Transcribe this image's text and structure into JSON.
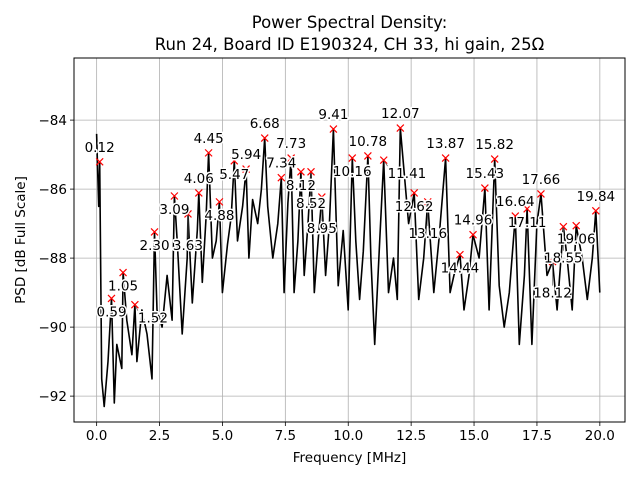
{
  "chart_data": {
    "type": "line",
    "title": [
      "Power Spectral Density:",
      "Run 24, Board ID E190324, CH 33, hi gain, 25Ω"
    ],
    "xlabel": "Frequency [MHz]",
    "ylabel": "PSD [dB Full Scale]",
    "xlim": [
      -0.9,
      21.0
    ],
    "ylim": [
      -92.75,
      -82.2
    ],
    "xticks": [
      0.0,
      2.5,
      5.0,
      7.5,
      10.0,
      12.5,
      15.0,
      17.5,
      20.0
    ],
    "xtick_labels": [
      "0.0",
      "2.5",
      "5.0",
      "7.5",
      "10.0",
      "12.5",
      "15.0",
      "17.5",
      "20.0"
    ],
    "yticks": [
      -84,
      -86,
      -88,
      -90,
      -92
    ],
    "ytick_labels": [
      "−84",
      "−86",
      "−88",
      "−90",
      "−92"
    ],
    "grid": true,
    "line_color": "#000000",
    "marker_color": "#ff0000",
    "trace": [
      [
        0.0,
        -84.4
      ],
      [
        0.08,
        -86.5
      ],
      [
        0.2,
        -91.5
      ],
      [
        0.3,
        -92.3
      ],
      [
        0.45,
        -91.0
      ],
      [
        0.7,
        -92.2
      ],
      [
        0.8,
        -90.5
      ],
      [
        1.0,
        -91.2
      ],
      [
        1.2,
        -89.8
      ],
      [
        1.4,
        -90.8
      ],
      [
        1.6,
        -91.0
      ],
      [
        1.8,
        -89.5
      ],
      [
        2.0,
        -90.2
      ],
      [
        2.2,
        -91.5
      ],
      [
        2.4,
        -89.5
      ],
      [
        2.6,
        -90.0
      ],
      [
        2.8,
        -88.5
      ],
      [
        3.0,
        -89.8
      ],
      [
        3.2,
        -87.5
      ],
      [
        3.4,
        -90.2
      ],
      [
        3.6,
        -88.0
      ],
      [
        3.8,
        -89.3
      ],
      [
        4.0,
        -87.2
      ],
      [
        4.2,
        -88.7
      ],
      [
        4.35,
        -86.8
      ],
      [
        4.6,
        -88.0
      ],
      [
        4.75,
        -87.5
      ],
      [
        5.0,
        -89.0
      ],
      [
        5.2,
        -87.6
      ],
      [
        5.35,
        -86.8
      ],
      [
        5.6,
        -87.5
      ],
      [
        5.8,
        -86.5
      ],
      [
        6.05,
        -88.0
      ],
      [
        6.2,
        -86.3
      ],
      [
        6.4,
        -87.0
      ],
      [
        6.55,
        -86.0
      ],
      [
        6.8,
        -86.5
      ],
      [
        7.0,
        -88.0
      ],
      [
        7.2,
        -87.0
      ],
      [
        7.45,
        -89.0
      ],
      [
        7.6,
        -86.4
      ],
      [
        7.85,
        -89.0
      ],
      [
        8.0,
        -87.5
      ],
      [
        8.25,
        -88.5
      ],
      [
        8.4,
        -87.0
      ],
      [
        8.65,
        -89.0
      ],
      [
        8.8,
        -87.5
      ],
      [
        9.1,
        -88.5
      ],
      [
        9.25,
        -87.0
      ],
      [
        9.6,
        -88.8
      ],
      [
        9.8,
        -87.2
      ],
      [
        10.0,
        -89.5
      ],
      [
        10.3,
        -87.5
      ],
      [
        10.45,
        -89.2
      ],
      [
        10.6,
        -87.8
      ],
      [
        10.9,
        -88.0
      ],
      [
        11.05,
        -90.5
      ],
      [
        11.25,
        -87.5
      ],
      [
        11.6,
        -89.0
      ],
      [
        11.8,
        -88.0
      ],
      [
        11.95,
        -89.2
      ],
      [
        12.4,
        -87.0
      ],
      [
        12.8,
        -89.2
      ],
      [
        13.0,
        -88.0
      ],
      [
        13.4,
        -89.0
      ],
      [
        13.6,
        -87.5
      ],
      [
        14.05,
        -89.0
      ],
      [
        14.2,
        -88.5
      ],
      [
        14.6,
        -89.5
      ],
      [
        14.8,
        -88.5
      ],
      [
        15.2,
        -88.0
      ],
      [
        15.6,
        -89.5
      ],
      [
        16.0,
        -88.8
      ],
      [
        16.2,
        -90.0
      ],
      [
        16.4,
        -89.0
      ],
      [
        16.8,
        -90.5
      ],
      [
        17.0,
        -88.5
      ],
      [
        17.3,
        -90.5
      ],
      [
        17.5,
        -87.0
      ],
      [
        17.9,
        -88.5
      ],
      [
        18.3,
        -89.5
      ],
      [
        18.7,
        -88.0
      ],
      [
        18.9,
        -89.5
      ],
      [
        19.3,
        -88.0
      ],
      [
        19.5,
        -89.2
      ],
      [
        19.7,
        -88.0
      ],
      [
        20.0,
        -89.0
      ]
    ],
    "peaks": [
      {
        "x": 0.12,
        "y": -85.21,
        "label": "0.12"
      },
      {
        "x": 0.59,
        "y": -89.17,
        "label": "0.59"
      },
      {
        "x": 1.05,
        "y": -88.42,
        "label": "1.05"
      },
      {
        "x": 1.52,
        "y": -89.35,
        "label": "1.52"
      },
      {
        "x": 2.3,
        "y": -87.24,
        "label": "2.30"
      },
      {
        "x": 3.09,
        "y": -86.2,
        "label": "3.09"
      },
      {
        "x": 3.63,
        "y": -86.72,
        "label": "3.63"
      },
      {
        "x": 4.06,
        "y": -86.11,
        "label": "4.06"
      },
      {
        "x": 4.45,
        "y": -84.95,
        "label": "4.45"
      },
      {
        "x": 4.88,
        "y": -86.37,
        "label": "4.88"
      },
      {
        "x": 5.47,
        "y": -85.18,
        "label": "5.47"
      },
      {
        "x": 5.94,
        "y": -85.42,
        "label": "5.94"
      },
      {
        "x": 6.68,
        "y": -84.52,
        "label": "6.68"
      },
      {
        "x": 7.34,
        "y": -85.67,
        "label": "7.34"
      },
      {
        "x": 7.73,
        "y": -85.1,
        "label": "7.73"
      },
      {
        "x": 8.12,
        "y": -85.5,
        "label": "8.12"
      },
      {
        "x": 8.52,
        "y": -85.5,
        "label": "8.52"
      },
      {
        "x": 8.95,
        "y": -86.23,
        "label": "8.95"
      },
      {
        "x": 9.41,
        "y": -84.26,
        "label": "9.41"
      },
      {
        "x": 10.16,
        "y": -85.1,
        "label": "10.16"
      },
      {
        "x": 10.78,
        "y": -85.04,
        "label": "10.78"
      },
      {
        "x": 11.41,
        "y": -85.16,
        "label": "11.41"
      },
      {
        "x": 12.07,
        "y": -84.23,
        "label": "12.07"
      },
      {
        "x": 12.62,
        "y": -86.11,
        "label": "12.62"
      },
      {
        "x": 13.16,
        "y": -86.37,
        "label": "13.16"
      },
      {
        "x": 13.87,
        "y": -85.1,
        "label": "13.87"
      },
      {
        "x": 14.44,
        "y": -87.9,
        "label": "14.44"
      },
      {
        "x": 14.96,
        "y": -87.32,
        "label": "14.96"
      },
      {
        "x": 15.43,
        "y": -85.97,
        "label": "15.43"
      },
      {
        "x": 15.82,
        "y": -85.13,
        "label": "15.82"
      },
      {
        "x": 16.64,
        "y": -86.78,
        "label": "16.64"
      },
      {
        "x": 17.11,
        "y": -86.57,
        "label": "17.11"
      },
      {
        "x": 17.66,
        "y": -86.14,
        "label": "17.66"
      },
      {
        "x": 18.12,
        "y": -88.1,
        "label": "18.12"
      },
      {
        "x": 18.55,
        "y": -87.09,
        "label": "18.55"
      },
      {
        "x": 19.06,
        "y": -87.06,
        "label": "19.06"
      },
      {
        "x": 19.84,
        "y": -86.63,
        "label": "19.84"
      }
    ]
  }
}
